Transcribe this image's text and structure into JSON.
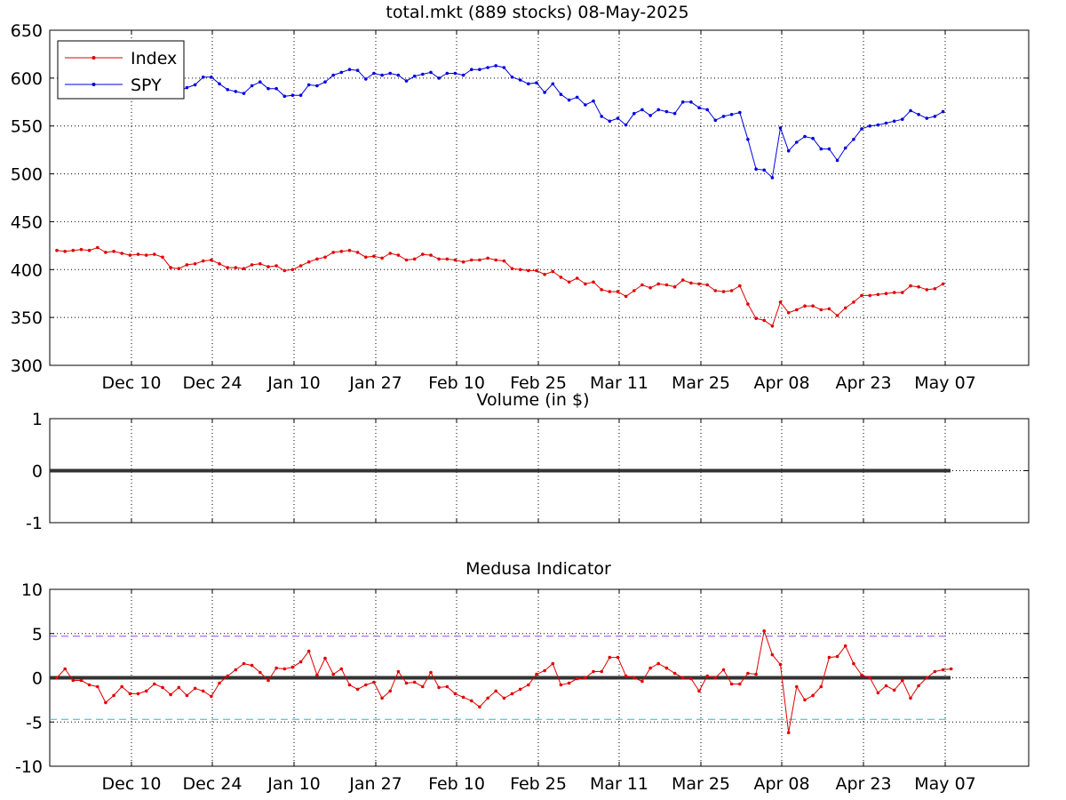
{
  "colors": {
    "index": "#e00000",
    "spy": "#0000e0",
    "zero_line": "#333333",
    "upper_band": "#a040ff",
    "lower_band": "#20c0c0"
  },
  "dates": [
    "Dec 10",
    "Dec 24",
    "Jan 10",
    "Jan 27",
    "Feb 10",
    "Feb 25",
    "Mar 11",
    "Mar 25",
    "Apr 08",
    "Apr 23",
    "May 07"
  ],
  "chart_data": [
    {
      "type": "line",
      "title": "total.mkt (889 stocks)   08-May-2025",
      "ylim": [
        300,
        650
      ],
      "yticks": [
        "650",
        "600",
        "550",
        "500",
        "450",
        "400",
        "350",
        "300"
      ],
      "legend": {
        "placement": "top-left",
        "entries": [
          "Index",
          "SPY"
        ]
      },
      "grid": true,
      "series": [
        {
          "name": "Index",
          "values": [
            420,
            419,
            420,
            421,
            420,
            423,
            418,
            419,
            417,
            415,
            416,
            415,
            416,
            413,
            402,
            401,
            405,
            406,
            409,
            410,
            406,
            402,
            402,
            401,
            405,
            406,
            403,
            404,
            399,
            400,
            404,
            408,
            411,
            413,
            418,
            419,
            420,
            418,
            413,
            414,
            412,
            417,
            415,
            410,
            411,
            416,
            415,
            411,
            411,
            410,
            408,
            410,
            410,
            412,
            410,
            409,
            401,
            400,
            399,
            399,
            395,
            398,
            392,
            387,
            391,
            385,
            387,
            379,
            377,
            377,
            372,
            378,
            384,
            381,
            385,
            384,
            382,
            389,
            386,
            385,
            384,
            378,
            377,
            378,
            383,
            364,
            349,
            347,
            341,
            366,
            355,
            358,
            362,
            362,
            358,
            359,
            352,
            360,
            366,
            373,
            373,
            374,
            375,
            376,
            376,
            383,
            382,
            379,
            380,
            385
          ]
        },
        {
          "name": "SPY",
          "values": [
            null,
            null,
            null,
            null,
            null,
            null,
            null,
            null,
            null,
            null,
            null,
            null,
            null,
            null,
            null,
            586,
            590,
            593,
            601,
            601,
            594,
            588,
            586,
            584,
            592,
            596,
            589,
            589,
            581,
            582,
            582,
            593,
            592,
            596,
            603,
            606,
            609,
            608,
            599,
            605,
            603,
            605,
            603,
            597,
            602,
            604,
            606,
            600,
            605,
            605,
            603,
            609,
            609,
            611,
            613,
            611,
            601,
            598,
            594,
            595,
            585,
            594,
            583,
            577,
            580,
            572,
            576,
            560,
            555,
            558,
            551,
            563,
            567,
            561,
            567,
            565,
            563,
            575,
            575,
            569,
            567,
            556,
            560,
            562,
            564,
            536,
            505,
            504,
            496,
            548,
            524,
            533,
            539,
            537,
            526,
            526,
            514,
            527,
            536,
            547,
            550,
            551,
            553,
            555,
            557,
            566,
            562,
            558,
            560,
            565
          ]
        }
      ]
    },
    {
      "type": "line",
      "title": "Volume (in $)",
      "ylim": [
        -1,
        1
      ],
      "yticks": [
        "1",
        "0",
        "-1"
      ],
      "grid": true,
      "series": [
        {
          "name": "",
          "values": [
            0,
            0
          ]
        }
      ]
    },
    {
      "type": "line",
      "title": "Medusa Indicator",
      "ylim": [
        -10,
        10
      ],
      "yticks": [
        "10",
        "5",
        "0",
        "-5",
        "-10"
      ],
      "grid": true,
      "bands": [
        4.7,
        -4.7
      ],
      "series": [
        {
          "name": "",
          "values": [
            0,
            1,
            -0.3,
            -0.3,
            -0.8,
            -1,
            -2.8,
            -2,
            -1,
            -1.8,
            -1.8,
            -1.5,
            -0.7,
            -1.1,
            -1.9,
            -1.1,
            -2,
            -1.2,
            -1.5,
            -2.1,
            -0.6,
            0.2,
            0.9,
            1.6,
            1.4,
            0.6,
            -0.3,
            1.1,
            1,
            1.2,
            1.8,
            3,
            0.3,
            2.2,
            0.4,
            1,
            -0.8,
            -1.3,
            -0.8,
            -0.5,
            -2.3,
            -1.5,
            0.7,
            -0.6,
            -0.5,
            -1,
            0.6,
            -1.1,
            -1,
            -1.8,
            -2.2,
            -2.6,
            -3.3,
            -2.3,
            -1.5,
            -2.3,
            -1.8,
            -1.3,
            -0.8,
            0.4,
            0.8,
            1.6,
            -0.8,
            -0.6,
            -0.1,
            0,
            0.7,
            0.7,
            2.3,
            2.3,
            0.2,
            0,
            -0.4,
            1.1,
            1.6,
            1.1,
            0.5,
            0,
            -0.1,
            -1.5,
            0.2,
            0,
            0.9,
            -0.7,
            -0.7,
            0.5,
            0.4,
            5.3,
            2.6,
            1.5,
            -6.2,
            -1,
            -2.5,
            -2,
            -1,
            2.3,
            2.4,
            3.6,
            1.6,
            0.3,
            0,
            -1.7,
            -0.9,
            -1.4,
            -0.3,
            -2.3,
            -0.9,
            0,
            0.7,
            0.9,
            1
          ]
        }
      ]
    }
  ]
}
